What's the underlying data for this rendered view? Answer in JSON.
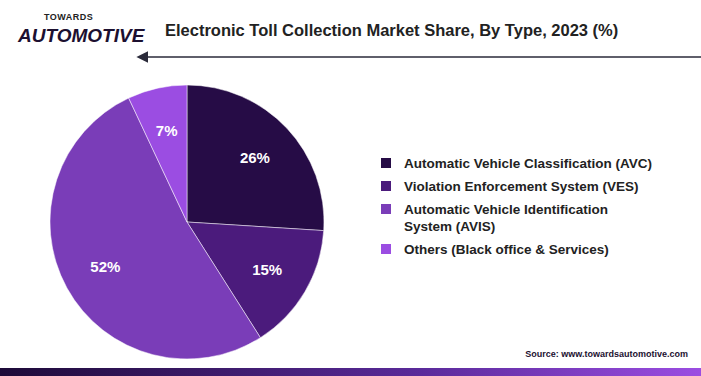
{
  "chart_data": {
    "type": "pie",
    "title": "Electronic Toll Collection Market Share, By Type, 2023 (%)",
    "categories": [
      "Automatic Vehicle Classification (AVC)",
      "Violation Enforcement System  (VES)",
      "Automatic Vehicle Identification System (AVIS)",
      "Others (Black office & Services)"
    ],
    "values": [
      26,
      15,
      52,
      7
    ],
    "value_labels": [
      "26%",
      "15%",
      "52%",
      "7%"
    ],
    "colors": [
      "#260c46",
      "#4b1b7c",
      "#7a3db8",
      "#9b4de2"
    ],
    "data_labels": true,
    "legend": "right",
    "brand": [
      "TOWARDS",
      "AUTOMOTIVE"
    ],
    "source": "Source: www.towardsautomotive.com"
  }
}
